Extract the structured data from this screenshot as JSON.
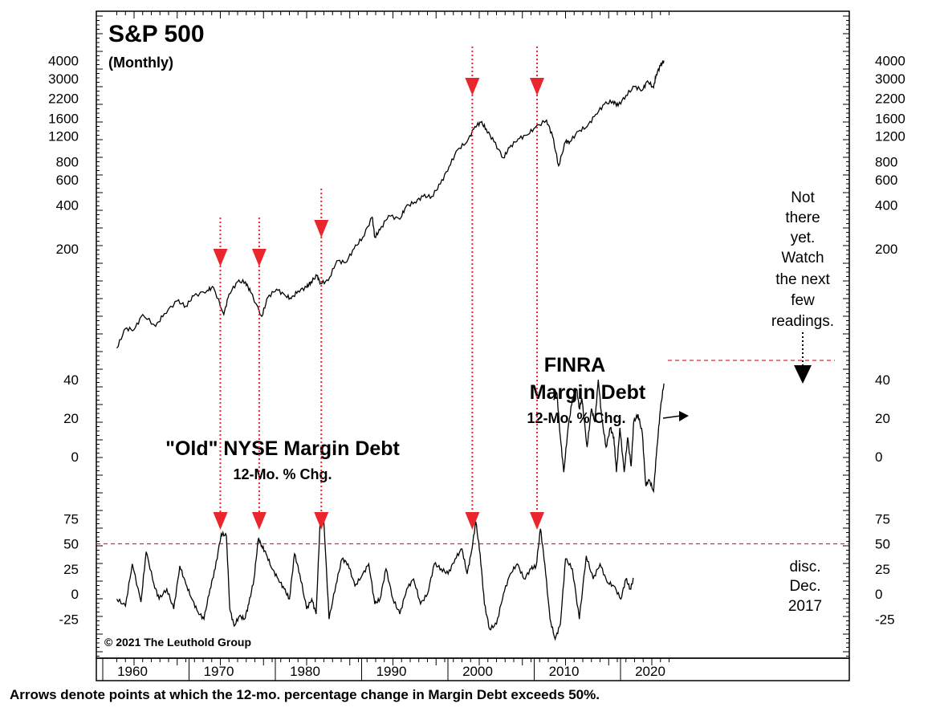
{
  "chart_data": [
    {
      "type": "line",
      "title": "S&P 500",
      "subtitle": "(Monthly)",
      "scale": "log",
      "yticks": [
        4000,
        3000,
        2200,
        1600,
        1200,
        800,
        600,
        400,
        200
      ],
      "xlim": [
        1958,
        2022
      ],
      "series": [
        {
          "name": "S&P 500",
          "x": [
            1958.0,
            1959.0,
            1960.0,
            1961.0,
            1962.5,
            1963.5,
            1965.0,
            1966.0,
            1966.9,
            1968.5,
            1969.2,
            1970.4,
            1971.0,
            1972.0,
            1972.9,
            1973.5,
            1974.8,
            1975.5,
            1976.5,
            1977.5,
            1978.2,
            1979.0,
            1980.0,
            1980.5,
            1981.2,
            1981.6,
            1982.5,
            1983.5,
            1984.5,
            1985.5,
            1986.5,
            1987.6,
            1987.9,
            1988.5,
            1989.5,
            1990.8,
            1991.5,
            1992.5,
            1993.5,
            1994.5,
            1995.5,
            1996.5,
            1997.5,
            1998.6,
            1999.5,
            2000.2,
            2000.8,
            2001.7,
            2002.8,
            2003.5,
            2004.5,
            2005.5,
            2006.5,
            2007.8,
            2008.5,
            2009.2,
            2010.0,
            2010.5,
            2011.5,
            2012.5,
            2013.5,
            2014.5,
            2015.5,
            2016.1,
            2017.0,
            2018.0,
            2018.9,
            2019.5,
            2020.2,
            2020.5,
            2021.0,
            2021.4
          ],
          "values": [
            41,
            56,
            55,
            70,
            58,
            71,
            87,
            80,
            94,
            103,
            108,
            70,
            97,
            118,
            118,
            100,
            68,
            92,
            105,
            95,
            90,
            102,
            108,
            118,
            130,
            115,
            120,
            165,
            160,
            200,
            240,
            330,
            240,
            270,
            340,
            320,
            390,
            420,
            460,
            460,
            560,
            740,
            970,
            1100,
            1400,
            1500,
            1350,
            1100,
            850,
            1000,
            1150,
            1220,
            1380,
            1550,
            1200,
            750,
            1100,
            1100,
            1300,
            1400,
            1700,
            2000,
            2100,
            1950,
            2300,
            2650,
            2500,
            2900,
            2600,
            3200,
            3700,
            4000
          ]
        }
      ]
    },
    {
      "type": "line",
      "title": "FINRA Margin Debt",
      "subtitle": "12-Mo. % Chg.",
      "yticks": [
        40,
        20,
        0
      ],
      "xlim": [
        1958,
        2022
      ],
      "series": [
        {
          "name": "FINRA Margin Debt",
          "x": [
            2008.6,
            2009.0,
            2009.4,
            2009.8,
            2010.3,
            2010.8,
            2011.3,
            2011.6,
            2011.9,
            2012.5,
            2013.0,
            2013.4,
            2013.8,
            2014.2,
            2014.7,
            2015.2,
            2015.6,
            2015.9,
            2016.3,
            2016.8,
            2017.2,
            2017.6,
            2017.9,
            2018.4,
            2018.9,
            2019.3,
            2019.7,
            2020.2,
            2020.6,
            2021.0,
            2021.4
          ],
          "values": [
            30,
            33,
            10,
            -8,
            15,
            30,
            35,
            25,
            30,
            5,
            25,
            18,
            40,
            20,
            5,
            15,
            10,
            -8,
            15,
            -8,
            10,
            -5,
            18,
            22,
            12,
            -15,
            -12,
            -18,
            5,
            25,
            38
          ]
        }
      ]
    },
    {
      "type": "line",
      "title": "\"Old\" NYSE Margin Debt",
      "subtitle": "12-Mo. % Chg.",
      "yticks": [
        75,
        50,
        25,
        0,
        -25
      ],
      "threshold": 50,
      "xlim": [
        1958,
        2022
      ],
      "series": [
        {
          "name": "\"Old\" NYSE Margin Debt",
          "x": [
            1958.0,
            1959.0,
            1959.8,
            1960.8,
            1961.4,
            1962.3,
            1962.9,
            1963.8,
            1964.6,
            1965.3,
            1966.0,
            1966.7,
            1967.4,
            1968.1,
            1968.8,
            1969.4,
            1970.1,
            1970.7,
            1971.1,
            1971.6,
            1972.2,
            1972.8,
            1973.3,
            1973.9,
            1974.4,
            1974.8,
            1975.3,
            1976.0,
            1976.7,
            1977.4,
            1978.0,
            1978.6,
            1979.2,
            1980.0,
            1980.6,
            1981.1,
            1981.6,
            1982.0,
            1982.6,
            1983.4,
            1984.1,
            1984.8,
            1985.6,
            1986.4,
            1987.2,
            1987.9,
            1988.5,
            1989.2,
            1990.0,
            1990.8,
            1991.6,
            1992.4,
            1993.2,
            1994.0,
            1994.8,
            1995.6,
            1996.4,
            1997.2,
            1998.0,
            1998.6,
            1999.1,
            1999.6,
            2000.1,
            2000.6,
            2001.2,
            2002.0,
            2002.8,
            2003.6,
            2004.4,
            2005.2,
            2006.0,
            2006.6,
            2007.1,
            2007.6,
            2008.2,
            2008.8,
            2009.4,
            2010.0,
            2010.8,
            2011.6,
            2012.4,
            2013.2,
            2014.0,
            2014.8,
            2015.6,
            2016.4,
            2017.0,
            2017.5,
            2017.9
          ],
          "values": [
            -5,
            -12,
            30,
            -8,
            42,
            10,
            -5,
            5,
            -15,
            28,
            10,
            -5,
            -18,
            -25,
            5,
            25,
            60,
            58,
            -15,
            -32,
            -22,
            -25,
            -10,
            15,
            55,
            48,
            40,
            25,
            15,
            5,
            -5,
            40,
            20,
            -15,
            -5,
            -20,
            80,
            72,
            -25,
            10,
            35,
            30,
            8,
            18,
            30,
            -10,
            -5,
            25,
            -5,
            -20,
            5,
            15,
            -10,
            0,
            30,
            25,
            20,
            35,
            45,
            20,
            42,
            72,
            40,
            -10,
            -35,
            -30,
            0,
            20,
            30,
            15,
            25,
            28,
            65,
            30,
            -25,
            -45,
            -30,
            35,
            25,
            -25,
            38,
            15,
            30,
            12,
            8,
            -5,
            15,
            5,
            15
          ]
        }
      ]
    }
  ],
  "axes": {
    "top_left_labels": [
      "4000",
      "3000",
      "2200",
      "1600",
      "1200",
      "800",
      "600",
      "400",
      "200"
    ],
    "top_right_labels": [
      "4000",
      "3000",
      "2200",
      "1600",
      "1200",
      "800",
      "600",
      "400",
      "200"
    ],
    "mid_left_labels": [
      "40",
      "20",
      "0"
    ],
    "mid_right_labels": [
      "40",
      "20",
      "0"
    ],
    "bottom_left_labels": [
      "75",
      "50",
      "25",
      "0",
      "-25"
    ],
    "bottom_right_labels": [
      "75",
      "50",
      "25",
      "0",
      "-25"
    ],
    "x_labels": [
      "1960",
      "1970",
      "1980",
      "1990",
      "2000",
      "2010",
      "2020"
    ]
  },
  "markers": {
    "arrow_years": [
      1970.0,
      1974.5,
      1981.7,
      1999.2,
      2006.7
    ],
    "color": "#e8262b",
    "dotted_line_color": "#e8262b"
  },
  "annotations": {
    "sp_title": "S&P 500",
    "sp_subtitle": "(Monthly)",
    "finra_line1": "FINRA",
    "finra_line2": "Margin Debt",
    "finra_line3": "12-Mo. % Chg.",
    "nyse_line1": "\"Old\" NYSE Margin Debt",
    "nyse_line2": "12-Mo. % Chg.",
    "not_there": [
      "Not",
      "there",
      "yet.",
      "Watch",
      "the next",
      "few",
      "readings."
    ],
    "disc": [
      "disc.",
      "Dec.",
      "2017"
    ],
    "copyright": "© 2021 The Leuthold Group"
  },
  "caption": "Arrows denote points at which the 12-mo. percentage change in Margin Debt exceeds 50%."
}
